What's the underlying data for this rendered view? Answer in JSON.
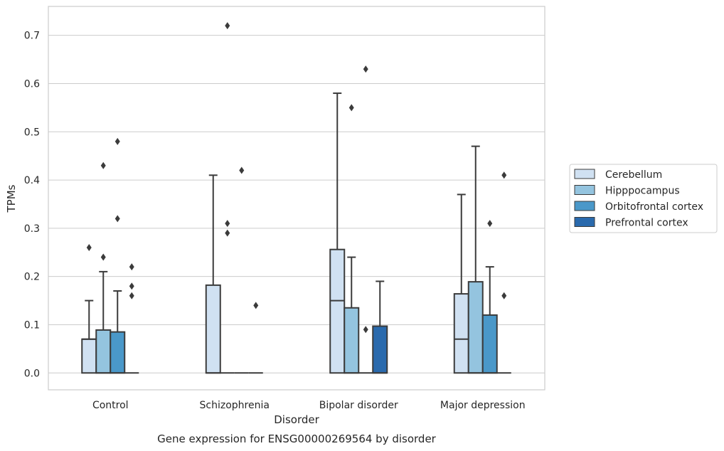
{
  "chart_data": {
    "type": "boxplot",
    "xlabel": "Disorder",
    "ylabel": "TPMs",
    "caption": "Gene expression for ENSG00000269564 by disorder",
    "ylim": [
      -0.035,
      0.76
    ],
    "yticks": [
      0.0,
      0.1,
      0.2,
      0.3,
      0.4,
      0.5,
      0.6,
      0.7
    ],
    "ytick_labels": [
      "0.0",
      "0.1",
      "0.2",
      "0.3",
      "0.4",
      "0.5",
      "0.6",
      "0.7"
    ],
    "grid": "horizontal",
    "legend_position": "right",
    "categories": [
      "Control",
      "Schizophrenia",
      "Bipolar disorder",
      "Major depression"
    ],
    "series": [
      {
        "name": "Cerebellum",
        "color": "#d0e1f2",
        "boxes": [
          {
            "min": 0.0,
            "q1": 0.0,
            "median": 0.07,
            "q3": 0.07,
            "max": 0.15,
            "outliers": [
              0.26
            ]
          },
          {
            "min": 0.0,
            "q1": 0.0,
            "median": 0.0,
            "q3": 0.182,
            "max": 0.41,
            "outliers": []
          },
          {
            "min": 0.0,
            "q1": 0.0,
            "median": 0.15,
            "q3": 0.256,
            "max": 0.58,
            "outliers": []
          },
          {
            "min": 0.0,
            "q1": 0.0,
            "median": 0.07,
            "q3": 0.164,
            "max": 0.37,
            "outliers": []
          }
        ]
      },
      {
        "name": "Hipppocampus",
        "color": "#94c4df",
        "boxes": [
          {
            "min": 0.0,
            "q1": 0.0,
            "median": 0.0,
            "q3": 0.089,
            "max": 0.21,
            "outliers": [
              0.24,
              0.43
            ]
          },
          {
            "min": 0.0,
            "q1": 0.0,
            "median": 0.0,
            "q3": 0.0,
            "max": 0.0,
            "outliers": [
              0.29,
              0.31,
              0.72
            ]
          },
          {
            "min": 0.0,
            "q1": 0.0,
            "median": 0.0,
            "q3": 0.135,
            "max": 0.24,
            "outliers": [
              0.55
            ]
          },
          {
            "min": 0.0,
            "q1": 0.0,
            "median": 0.0,
            "q3": 0.189,
            "max": 0.47,
            "outliers": []
          }
        ]
      },
      {
        "name": "Orbitofrontal cortex",
        "color": "#4a98c9",
        "boxes": [
          {
            "min": 0.0,
            "q1": 0.0,
            "median": 0.0,
            "q3": 0.085,
            "max": 0.17,
            "outliers": [
              0.32,
              0.48
            ]
          },
          {
            "min": 0.0,
            "q1": 0.0,
            "median": 0.0,
            "q3": 0.0,
            "max": 0.0,
            "outliers": [
              0.42
            ]
          },
          {
            "min": 0.0,
            "q1": 0.0,
            "median": 0.0,
            "q3": 0.0,
            "max": 0.0,
            "outliers": [
              0.09,
              0.63
            ]
          },
          {
            "min": 0.0,
            "q1": 0.0,
            "median": 0.0,
            "q3": 0.12,
            "max": 0.22,
            "outliers": [
              0.31
            ]
          }
        ]
      },
      {
        "name": "Prefrontal cortex",
        "color": "#2a6aad",
        "boxes": [
          {
            "min": 0.0,
            "q1": 0.0,
            "median": 0.0,
            "q3": 0.0,
            "max": 0.0,
            "outliers": [
              0.16,
              0.18,
              0.22
            ]
          },
          {
            "min": 0.0,
            "q1": 0.0,
            "median": 0.0,
            "q3": 0.0,
            "max": 0.0,
            "outliers": [
              0.14
            ]
          },
          {
            "min": 0.0,
            "q1": 0.0,
            "median": 0.0,
            "q3": 0.097,
            "max": 0.19,
            "outliers": []
          },
          {
            "min": 0.0,
            "q1": 0.0,
            "median": 0.0,
            "q3": 0.0,
            "max": 0.0,
            "outliers": [
              0.16,
              0.41
            ]
          }
        ]
      }
    ]
  }
}
